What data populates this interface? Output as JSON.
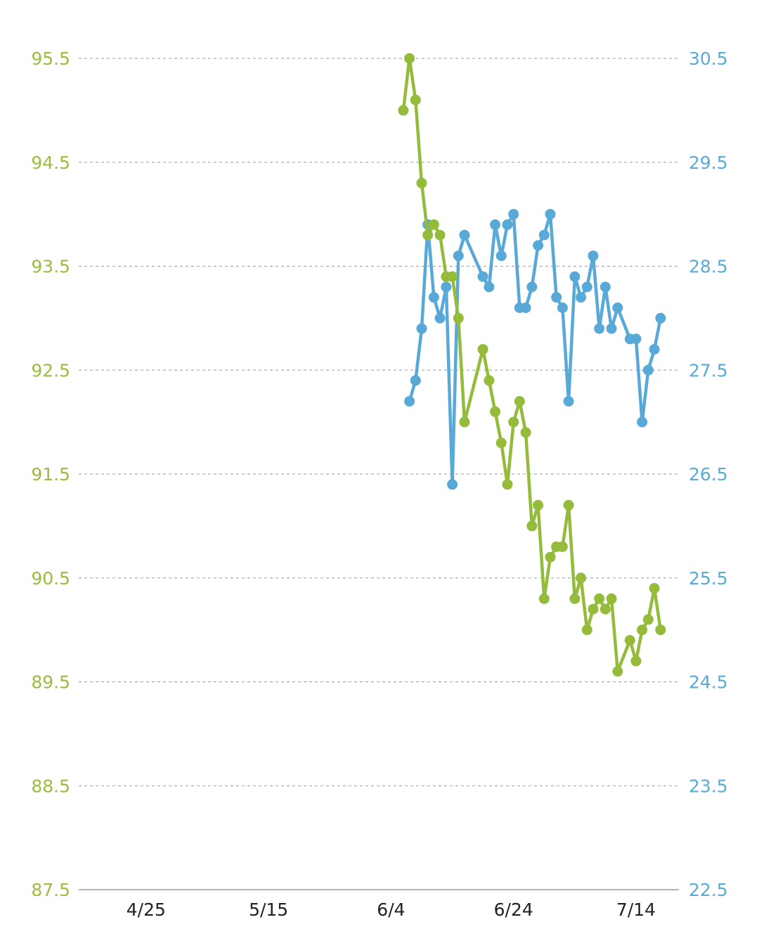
{
  "chart_data": {
    "type": "line",
    "title": "",
    "grid": true,
    "legend": "none",
    "colors": {
      "left_series": "#94bb3a",
      "right_series": "#58a9d8",
      "axis_left_text": "#9cbd3c",
      "axis_right_text": "#5aaad6",
      "axis_x_text": "#222222"
    },
    "x_axis": {
      "range": [
        "2025-04-14",
        "2025-07-21"
      ],
      "ticks": [
        {
          "date": "2025-04-25",
          "label": "4/25"
        },
        {
          "date": "2025-05-15",
          "label": "5/15"
        },
        {
          "date": "2025-06-04",
          "label": "6/4"
        },
        {
          "date": "2025-06-24",
          "label": "6/24"
        },
        {
          "date": "2025-07-14",
          "label": "7/14"
        }
      ]
    },
    "y_axis_left": {
      "range": [
        87.5,
        95.5
      ],
      "ticks": [
        "95.5",
        "94.5",
        "93.5",
        "92.5",
        "91.5",
        "90.5",
        "89.5",
        "88.5",
        "87.5"
      ]
    },
    "y_axis_right": {
      "range": [
        22.5,
        30.5
      ],
      "ticks": [
        "30.5",
        "29.5",
        "28.5",
        "27.5",
        "26.5",
        "25.5",
        "24.5",
        "23.5",
        "22.5"
      ]
    },
    "series": [
      {
        "axis": "left",
        "color": "#94bb3a",
        "points": [
          [
            "2025-06-06",
            95.0
          ],
          [
            "2025-06-07",
            95.5
          ],
          [
            "2025-06-08",
            95.1
          ],
          [
            "2025-06-09",
            94.3
          ],
          [
            "2025-06-10",
            93.8
          ],
          [
            "2025-06-11",
            93.9
          ],
          [
            "2025-06-12",
            93.8
          ],
          [
            "2025-06-13",
            93.4
          ],
          [
            "2025-06-14",
            93.4
          ],
          [
            "2025-06-15",
            93.0
          ],
          [
            "2025-06-16",
            92.0
          ],
          [
            "2025-06-19",
            92.7
          ],
          [
            "2025-06-20",
            92.4
          ],
          [
            "2025-06-21",
            92.1
          ],
          [
            "2025-06-22",
            91.8
          ],
          [
            "2025-06-23",
            91.4
          ],
          [
            "2025-06-24",
            92.0
          ],
          [
            "2025-06-25",
            92.2
          ],
          [
            "2025-06-26",
            91.9
          ],
          [
            "2025-06-27",
            91.0
          ],
          [
            "2025-06-28",
            91.2
          ],
          [
            "2025-06-29",
            90.3
          ],
          [
            "2025-06-30",
            90.7
          ],
          [
            "2025-07-01",
            90.8
          ],
          [
            "2025-07-02",
            90.8
          ],
          [
            "2025-07-03",
            91.2
          ],
          [
            "2025-07-04",
            90.3
          ],
          [
            "2025-07-05",
            90.5
          ],
          [
            "2025-07-06",
            90.0
          ],
          [
            "2025-07-07",
            90.2
          ],
          [
            "2025-07-08",
            90.3
          ],
          [
            "2025-07-09",
            90.2
          ],
          [
            "2025-07-10",
            90.3
          ],
          [
            "2025-07-11",
            89.6
          ],
          [
            "2025-07-13",
            89.9
          ],
          [
            "2025-07-14",
            89.7
          ],
          [
            "2025-07-15",
            90.0
          ],
          [
            "2025-07-16",
            90.1
          ],
          [
            "2025-07-17",
            90.4
          ],
          [
            "2025-07-18",
            90.0
          ]
        ]
      },
      {
        "axis": "right",
        "color": "#58a9d8",
        "points": [
          [
            "2025-06-07",
            27.2
          ],
          [
            "2025-06-08",
            27.4
          ],
          [
            "2025-06-09",
            27.9
          ],
          [
            "2025-06-10",
            28.9
          ],
          [
            "2025-06-11",
            28.2
          ],
          [
            "2025-06-12",
            28.0
          ],
          [
            "2025-06-13",
            28.3
          ],
          [
            "2025-06-14",
            26.4
          ],
          [
            "2025-06-15",
            28.6
          ],
          [
            "2025-06-16",
            28.8
          ],
          [
            "2025-06-19",
            28.4
          ],
          [
            "2025-06-20",
            28.3
          ],
          [
            "2025-06-21",
            28.9
          ],
          [
            "2025-06-22",
            28.6
          ],
          [
            "2025-06-23",
            28.9
          ],
          [
            "2025-06-24",
            29.0
          ],
          [
            "2025-06-25",
            28.1
          ],
          [
            "2025-06-26",
            28.1
          ],
          [
            "2025-06-27",
            28.3
          ],
          [
            "2025-06-28",
            28.7
          ],
          [
            "2025-06-29",
            28.8
          ],
          [
            "2025-06-30",
            29.0
          ],
          [
            "2025-07-01",
            28.2
          ],
          [
            "2025-07-02",
            28.1
          ],
          [
            "2025-07-03",
            27.2
          ],
          [
            "2025-07-04",
            28.4
          ],
          [
            "2025-07-05",
            28.2
          ],
          [
            "2025-07-06",
            28.3
          ],
          [
            "2025-07-07",
            28.6
          ],
          [
            "2025-07-08",
            27.9
          ],
          [
            "2025-07-09",
            28.3
          ],
          [
            "2025-07-10",
            27.9
          ],
          [
            "2025-07-11",
            28.1
          ],
          [
            "2025-07-13",
            27.8
          ],
          [
            "2025-07-14",
            27.8
          ],
          [
            "2025-07-15",
            27.0
          ],
          [
            "2025-07-16",
            27.5
          ],
          [
            "2025-07-17",
            27.7
          ],
          [
            "2025-07-18",
            28.0
          ]
        ]
      }
    ]
  }
}
